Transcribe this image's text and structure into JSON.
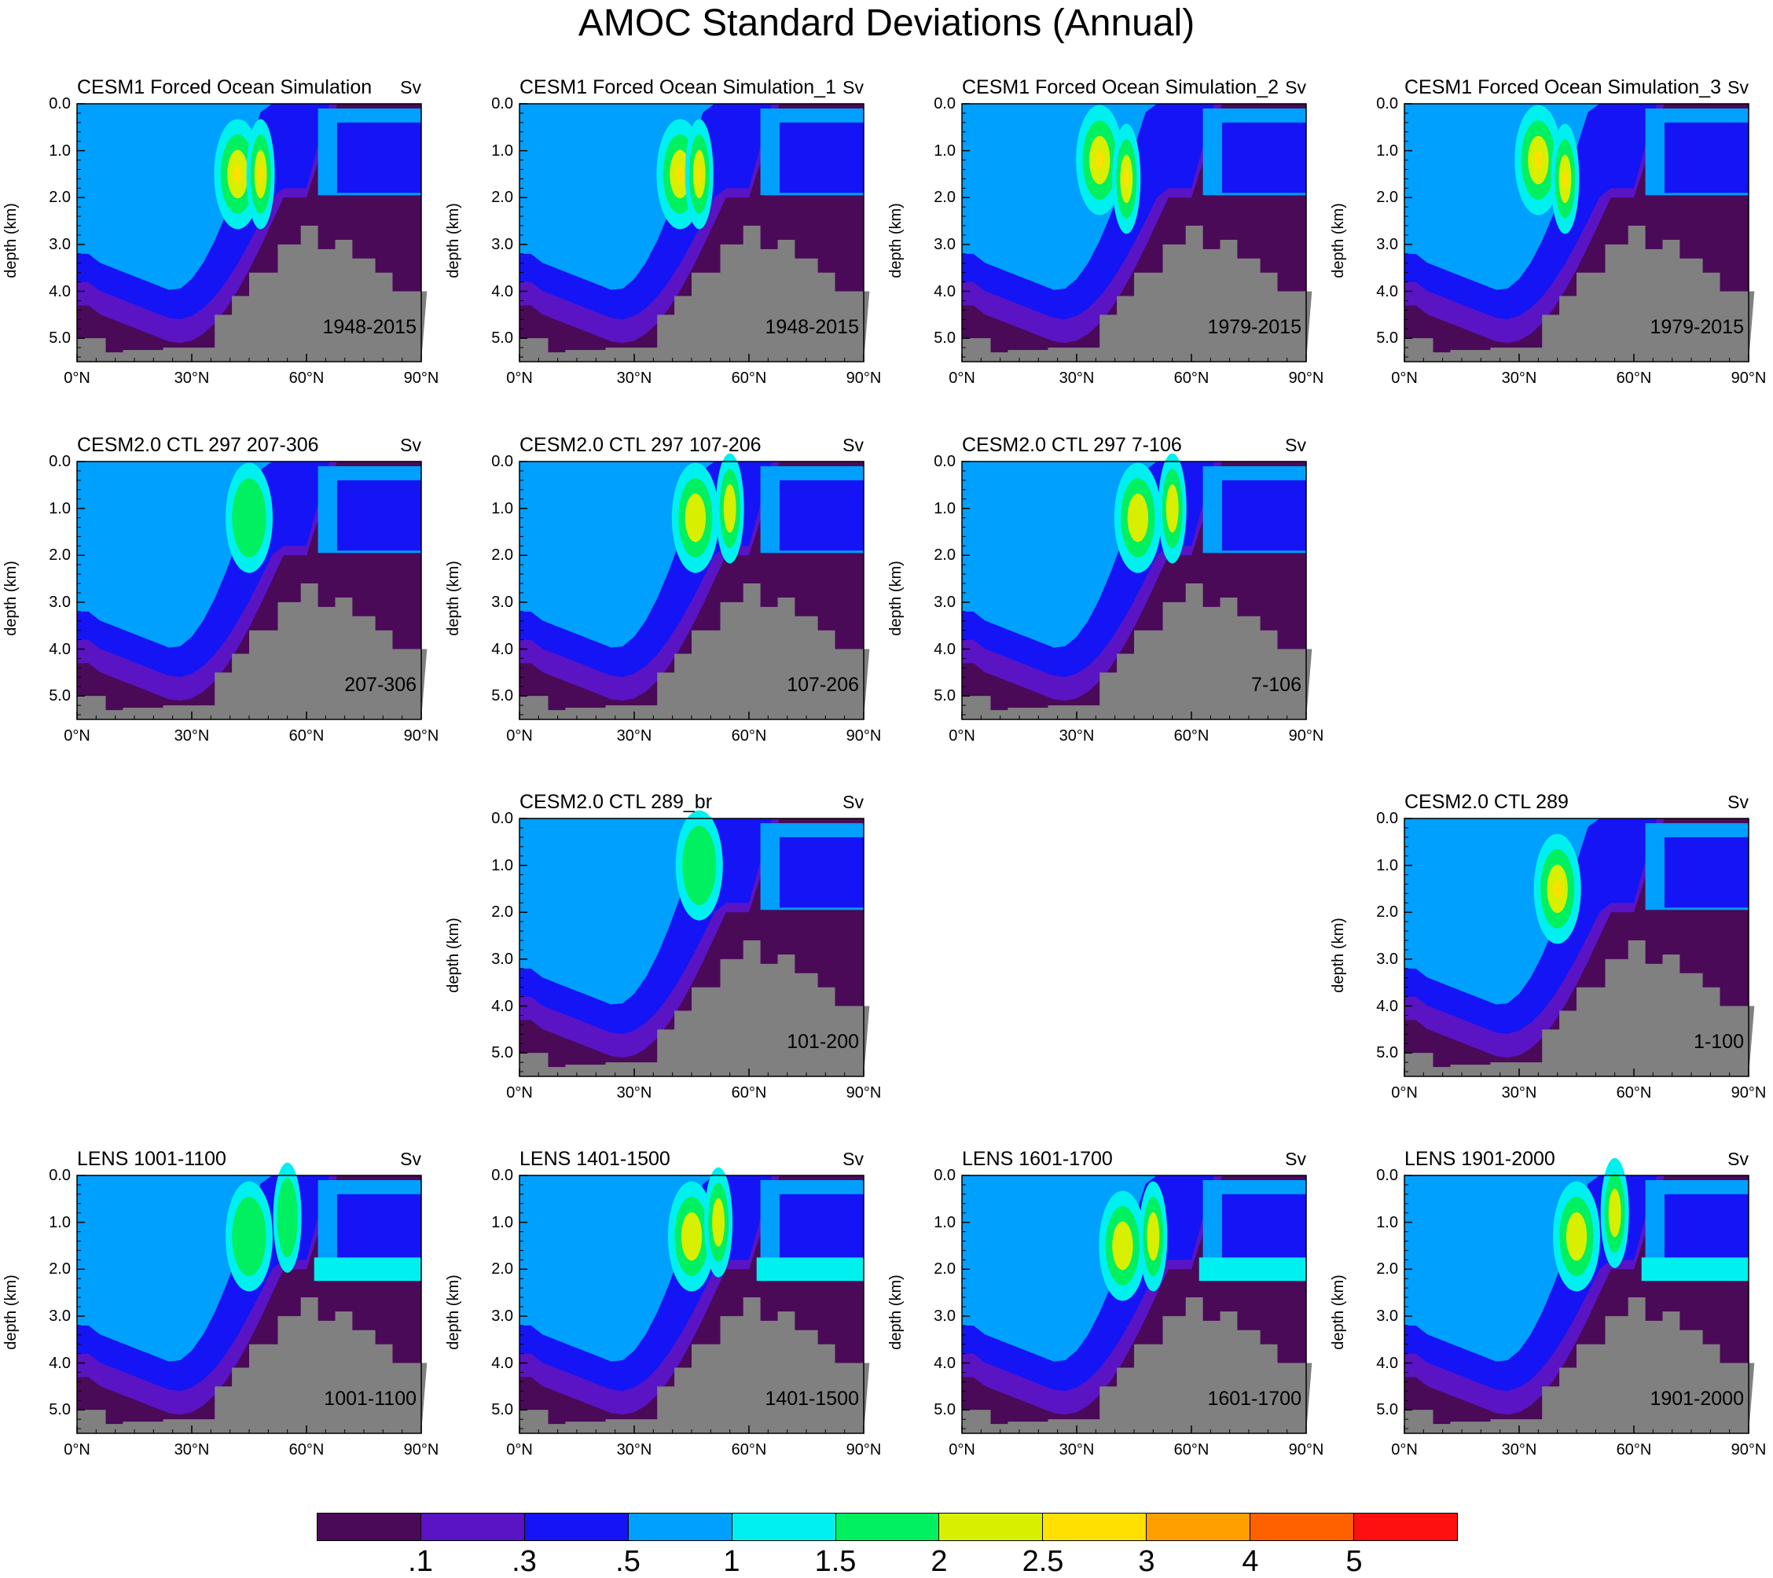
{
  "title": "AMOC Standard Deviations (Annual)",
  "chart_data": {
    "type": "contour",
    "title": "AMOC Standard Deviations (Annual)",
    "ylabel": "depth (km)",
    "units": "Sv",
    "x_ticks": [
      "0°N",
      "30°N",
      "60°N",
      "90°N"
    ],
    "y_ticks": [
      "0.0",
      "1.0",
      "2.0",
      "3.0",
      "4.0",
      "5.0"
    ],
    "xlim": [
      0,
      90
    ],
    "ylim_km": [
      0,
      5.5
    ],
    "levels": [
      ".1",
      ".3",
      ".5",
      "1",
      "1.5",
      "2",
      "2.5",
      "3",
      "4",
      "5"
    ],
    "colors": [
      "#4a0a58",
      "#5a14c4",
      "#1414f5",
      "#00a0ff",
      "#00f0f0",
      "#00f060",
      "#d8f000",
      "#ffe000",
      "#ffa000",
      "#ff6000",
      "#ff1010"
    ],
    "land_color": "#808080",
    "panels": [
      {
        "title": "CESM1 Forced Ocean Simulation",
        "suffix": "",
        "period": "1948-2015",
        "units": "Sv",
        "peak": 2.5,
        "cores": [
          [
            42,
            1.5
          ],
          [
            48,
            1.5
          ]
        ]
      },
      {
        "title": "CESM1 Forced Ocean Simulation_1",
        "suffix": "",
        "period": "1948-2015",
        "units": "Sv",
        "peak": 2.5,
        "cores": [
          [
            42,
            1.5
          ],
          [
            47,
            1.5
          ]
        ]
      },
      {
        "title": "CESM1 Forced Ocean Simulation_2",
        "suffix": "",
        "period": "1979-2015",
        "units": "Sv",
        "peak": 3,
        "cores": [
          [
            36,
            1.2
          ],
          [
            43,
            1.6
          ]
        ]
      },
      {
        "title": "CESM1 Forced Ocean Simulation_3",
        "suffix": "",
        "period": "1979-2015",
        "units": "Sv",
        "peak": 3,
        "cores": [
          [
            35,
            1.2
          ],
          [
            42,
            1.6
          ]
        ]
      },
      {
        "title": "CESM2.0 CTL 297 207-306",
        "suffix": "",
        "period": "207-306",
        "units": "Sv",
        "peak": 1.5,
        "cores": [
          [
            45,
            1.2
          ]
        ]
      },
      {
        "title": "CESM2.0 CTL 297 107-206",
        "suffix": "",
        "period": "107-206",
        "units": "Sv",
        "peak": 2,
        "cores": [
          [
            46,
            1.2
          ],
          [
            55,
            1.0
          ]
        ]
      },
      {
        "title": "CESM2.0 CTL 297 7-106",
        "suffix": "",
        "period": "7-106",
        "units": "Sv",
        "peak": 2,
        "cores": [
          [
            46,
            1.2
          ],
          [
            55,
            1.0
          ]
        ]
      },
      {
        "title": "CESM2.0 CTL 289_br",
        "suffix": "",
        "period": "101-200",
        "units": "Sv",
        "peak": 1.5,
        "cores": [
          [
            47,
            1.0
          ]
        ]
      },
      {
        "title": "CESM2.0 CTL 289",
        "suffix": "",
        "period": "1-100",
        "units": "Sv",
        "peak": 2.5,
        "cores": [
          [
            40,
            1.5
          ]
        ]
      },
      {
        "title": "LENS 1001-1100",
        "suffix": "",
        "period": "1001-1100",
        "units": "Sv",
        "peak": 1.5,
        "cores": [
          [
            45,
            1.3
          ],
          [
            55,
            0.9
          ]
        ]
      },
      {
        "title": "LENS 1401-1500",
        "suffix": "",
        "period": "1401-1500",
        "units": "Sv",
        "peak": 2,
        "cores": [
          [
            45,
            1.3
          ],
          [
            52,
            1.0
          ]
        ]
      },
      {
        "title": "LENS 1601-1700",
        "suffix": "",
        "period": "1601-1700",
        "units": "Sv",
        "peak": 2,
        "cores": [
          [
            42,
            1.5
          ],
          [
            50,
            1.3
          ]
        ]
      },
      {
        "title": "LENS 1901-2000",
        "suffix": "",
        "period": "1901-2000",
        "units": "Sv",
        "peak": 2,
        "cores": [
          [
            45,
            1.3
          ],
          [
            55,
            0.8
          ]
        ]
      }
    ]
  }
}
